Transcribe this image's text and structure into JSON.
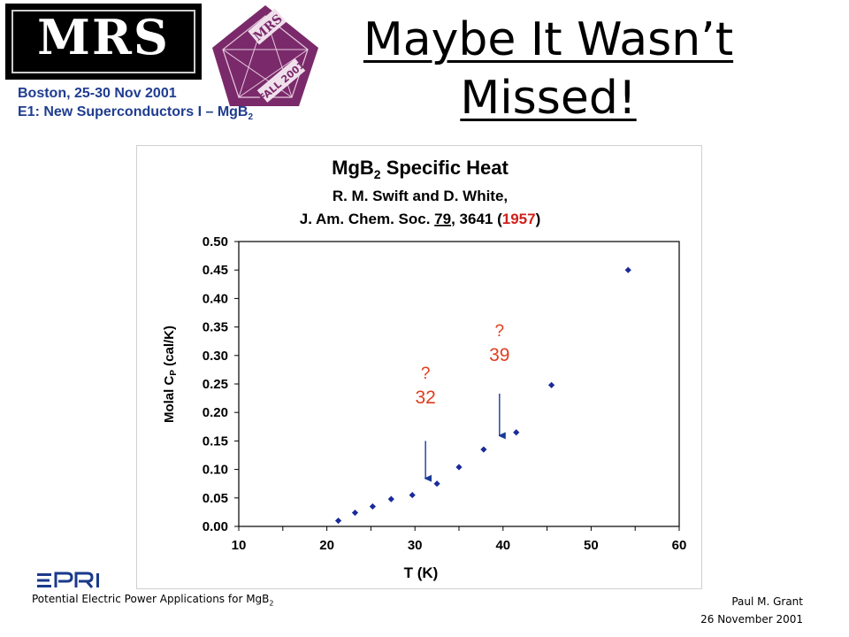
{
  "logos": {
    "mrs_letters": "MRS",
    "fall_badge_top": "MRS",
    "fall_badge_bottom": "FALL 2001"
  },
  "conference": {
    "line1": "Boston, 25-30 Nov 2001",
    "line2_prefix": "E1: New Superconductors I – MgB",
    "line2_sub": "2"
  },
  "title": {
    "line1": "Maybe It Wasn’t",
    "line2": "Missed!"
  },
  "chart_data": {
    "type": "scatter",
    "title": {
      "main_prefix": "MgB",
      "main_sub": "2",
      "main_suffix": " Specific Heat",
      "citation_line1": "R. M. Swift and D. White,",
      "citation_line2_prefix": "J. Am. Chem. Soc. ",
      "citation_volume": "79",
      "citation_pages": ", 3641 (",
      "citation_year": "1957",
      "citation_close": ")"
    },
    "xlabel": "T (K)",
    "ylabel": "Molal C",
    "ylabel_sub": "P",
    "ylabel_suffix": " (cal/K)",
    "xlim": [
      10,
      60
    ],
    "ylim": [
      0.0,
      0.5
    ],
    "xticks": [
      "10",
      "20",
      "30",
      "40",
      "50",
      "60"
    ],
    "xtick_values": [
      10,
      20,
      30,
      40,
      50,
      60
    ],
    "yticks": [
      "0.00",
      "0.05",
      "0.10",
      "0.15",
      "0.20",
      "0.25",
      "0.30",
      "0.35",
      "0.40",
      "0.45",
      "0.50"
    ],
    "ytick_values": [
      0.0,
      0.05,
      0.1,
      0.15,
      0.2,
      0.25,
      0.3,
      0.35,
      0.4,
      0.45,
      0.5
    ],
    "grid": false,
    "marker_color": "#1a2a9a",
    "accent_color": "#e03c1e",
    "arrow_color": "#1a3a9a",
    "series": [
      {
        "x": [
          21.3,
          23.2,
          25.2,
          27.3,
          29.7,
          32.5,
          35.0,
          37.8,
          41.5,
          45.5,
          54.2
        ],
        "y": [
          0.01,
          0.024,
          0.035,
          0.048,
          0.055,
          0.075,
          0.104,
          0.135,
          0.165,
          0.248,
          0.45
        ]
      }
    ],
    "annotations": [
      {
        "q": "?",
        "value": "32",
        "text_x": 31.2,
        "text_y": 0.225,
        "arrow_from": [
          31.2,
          0.15
        ],
        "arrow_to": [
          31.2,
          0.075
        ]
      },
      {
        "q": "?",
        "value": "39",
        "text_x": 39.6,
        "text_y": 0.3,
        "arrow_from": [
          39.6,
          0.233
        ],
        "arrow_to": [
          39.6,
          0.15
        ]
      }
    ]
  },
  "footer": {
    "logo_text": "EPRI",
    "left_prefix": "Potential Electric Power Applications for MgB",
    "left_sub": "2",
    "right_line1": "Paul M. Grant",
    "right_line2": "26 November 2001"
  }
}
